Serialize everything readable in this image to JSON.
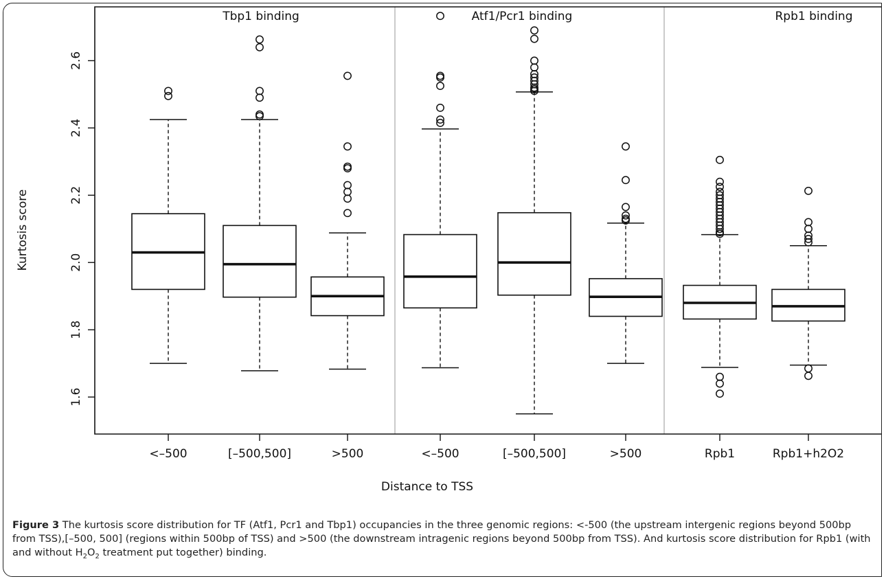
{
  "chart_data": {
    "type": "boxplot",
    "xlabel": "Distance to TSS",
    "ylabel": "Kurtosis score",
    "ylim": [
      1.49,
      2.76
    ],
    "yticks": [
      "1.6",
      "1.8",
      "2.0",
      "2.2",
      "2.4",
      "2.6"
    ],
    "groups": [
      {
        "title": "Tbp1 binding",
        "boxes": [
          0,
          1,
          2
        ]
      },
      {
        "title": "Atf1/Pcr1 binding",
        "boxes": [
          3,
          4,
          5
        ]
      },
      {
        "title": "Rpb1 binding",
        "boxes": [
          6,
          7
        ]
      }
    ],
    "boxes": [
      {
        "label": "<–500",
        "whisker_low": 1.7,
        "q1": 1.92,
        "median": 2.03,
        "q3": 2.145,
        "whisker_high": 2.425,
        "outliers": [
          2.495,
          2.51
        ]
      },
      {
        "label": "[–500,500]",
        "whisker_low": 1.678,
        "q1": 1.897,
        "median": 1.995,
        "q3": 2.11,
        "whisker_high": 2.425,
        "outliers": [
          2.435,
          2.44,
          2.49,
          2.51,
          2.64,
          2.663
        ]
      },
      {
        "label": ">500",
        "whisker_low": 1.683,
        "q1": 1.842,
        "median": 1.9,
        "q3": 1.957,
        "whisker_high": 2.088,
        "outliers": [
          2.147,
          2.19,
          2.21,
          2.23,
          2.28,
          2.285,
          2.345,
          2.555
        ]
      },
      {
        "label": "<–500",
        "whisker_low": 1.687,
        "q1": 1.865,
        "median": 1.958,
        "q3": 2.083,
        "whisker_high": 2.397,
        "outliers": [
          2.415,
          2.425,
          2.46,
          2.525,
          2.55,
          2.555,
          2.733
        ]
      },
      {
        "label": "[–500,500]",
        "whisker_low": 1.55,
        "q1": 1.903,
        "median": 2.0,
        "q3": 2.148,
        "whisker_high": 2.507,
        "outliers": [
          2.51,
          2.515,
          2.52,
          2.53,
          2.54,
          2.55,
          2.56,
          2.58,
          2.6,
          2.665,
          2.69
        ]
      },
      {
        "label": ">500",
        "whisker_low": 1.7,
        "q1": 1.84,
        "median": 1.898,
        "q3": 1.952,
        "whisker_high": 2.117,
        "outliers": [
          2.125,
          2.13,
          2.14,
          2.165,
          2.245,
          2.345
        ]
      },
      {
        "label": "Rpb1",
        "whisker_low": 1.688,
        "q1": 1.832,
        "median": 1.88,
        "q3": 1.932,
        "whisker_high": 2.083,
        "outliers": [
          1.61,
          1.64,
          1.66,
          2.085,
          2.09,
          2.1,
          2.11,
          2.12,
          2.13,
          2.14,
          2.15,
          2.16,
          2.17,
          2.18,
          2.19,
          2.2,
          2.21,
          2.225,
          2.24,
          2.305
        ]
      },
      {
        "label": "Rpb1+h2O2",
        "whisker_low": 1.695,
        "q1": 1.826,
        "median": 1.87,
        "q3": 1.92,
        "whisker_high": 2.05,
        "outliers": [
          1.663,
          1.685,
          2.06,
          2.07,
          2.08,
          2.1,
          2.12,
          2.213
        ]
      }
    ]
  },
  "caption": {
    "figure_label": "Figure 3",
    "text_part1": " The kurtosis score distribution for TF (Atf1, Pcr1 and Tbp1) occupancies in the three genomic regions: <-500 (the upstream intergenic regions beyond 500bp from TSS),[–500, 500] (regions within 500bp of TSS) and >500 (the downstream intragenic regions beyond 500bp from TSS). And kurtosis score distribution for Rpb1 (with and without H",
    "sub_2": "2",
    "text_part2": "O",
    "sub_2b": "2",
    "text_part3": " treatment put together) binding."
  }
}
